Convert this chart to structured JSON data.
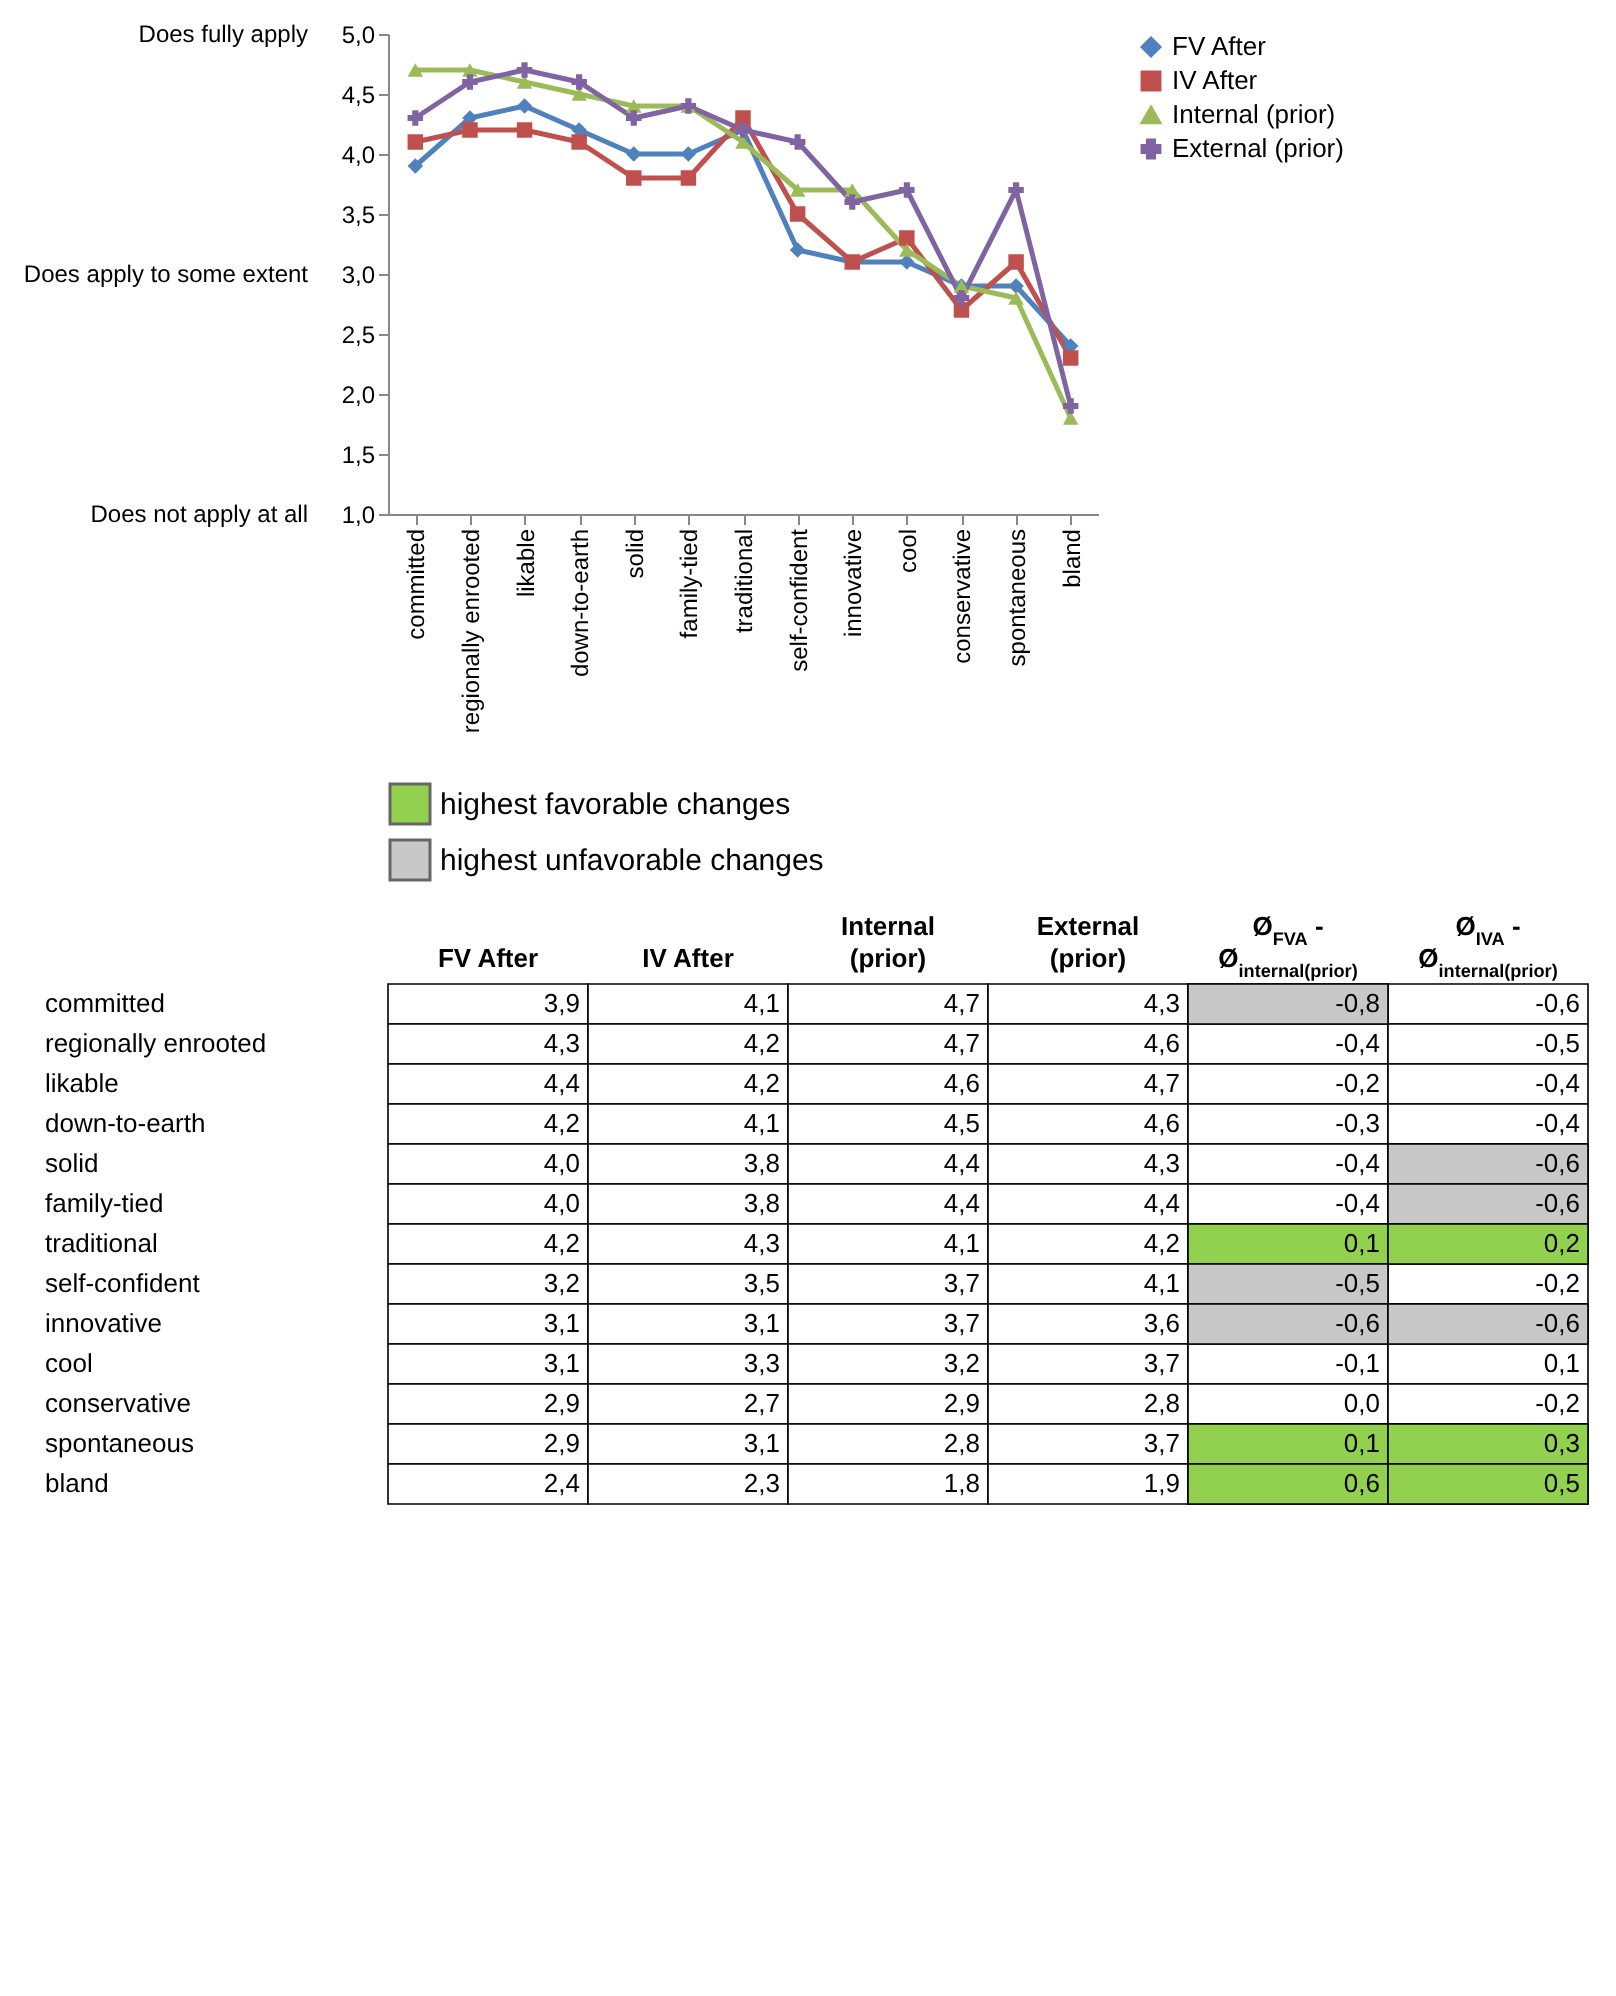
{
  "chart_data": [
    {
      "type": "line",
      "categories": [
        "committed",
        "regionally enrooted",
        "likable",
        "down-to-earth",
        "solid",
        "family-tied",
        "traditional",
        "self-confident",
        "innovative",
        "cool",
        "conservative",
        "spontaneous",
        "bland"
      ],
      "series": [
        {
          "name": "FV After",
          "color": "#4f81bd",
          "marker": "diamond",
          "values": [
            3.9,
            4.3,
            4.4,
            4.2,
            4.0,
            4.0,
            4.2,
            3.2,
            3.1,
            3.1,
            2.9,
            2.9,
            2.4
          ]
        },
        {
          "name": "IV After",
          "color": "#c0504d",
          "marker": "square",
          "values": [
            4.1,
            4.2,
            4.2,
            4.1,
            3.8,
            3.8,
            4.3,
            3.5,
            3.1,
            3.3,
            2.7,
            3.1,
            2.3
          ]
        },
        {
          "name": "Internal (prior)",
          "color": "#9bbb59",
          "marker": "triangle",
          "values": [
            4.7,
            4.7,
            4.6,
            4.5,
            4.4,
            4.4,
            4.1,
            3.7,
            3.7,
            3.2,
            2.9,
            2.8,
            1.8
          ]
        },
        {
          "name": "External (prior)",
          "color": "#8064a2",
          "marker": "cross",
          "values": [
            4.3,
            4.6,
            4.7,
            4.6,
            4.3,
            4.4,
            4.2,
            4.1,
            3.6,
            3.7,
            2.8,
            3.7,
            1.9
          ]
        }
      ],
      "ylim": [
        1,
        5
      ],
      "yticks": [
        {
          "value": 1,
          "label": "1,0"
        },
        {
          "value": 1.5,
          "label": "1,5"
        },
        {
          "value": 2,
          "label": "2,0"
        },
        {
          "value": 2.5,
          "label": "2,5"
        },
        {
          "value": 3,
          "label": "3,0"
        },
        {
          "value": 3.5,
          "label": "3,5"
        },
        {
          "value": 4,
          "label": "4,0"
        },
        {
          "value": 4.5,
          "label": "4,5"
        },
        {
          "value": 5,
          "label": "5,0"
        }
      ],
      "annotations": [
        "Does fully apply",
        "Does apply to some extent",
        "Does not apply at all"
      ],
      "legend": "right",
      "grid": false
    },
    {
      "type": "other",
      "categories": [
        "FV After",
        "IV After",
        "Internal (prior)",
        "External (prior)",
        "Ø$_{FVA}$ - Ø$_{internal(prior)}$",
        "Ø$_{IVA}$ - Ø$_{internal(prior)}$"
      ],
      "y_categories": [
        "committed",
        "regionally enrooted",
        "likable",
        "down-to-earth",
        "solid",
        "family-tied",
        "traditional",
        "self-confident",
        "innovative",
        "cool",
        "conservative",
        "spontaneous",
        "bland"
      ],
      "cell_labels": [
        [
          "3,9",
          "4,1",
          "4,7",
          "4,3",
          "-0,8",
          "-0,6"
        ],
        [
          "4,3",
          "4,2",
          "4,7",
          "4,6",
          "-0,4",
          "-0,5"
        ],
        [
          "4,4",
          "4,2",
          "4,6",
          "4,7",
          "-0,2",
          "-0,4"
        ],
        [
          "4,2",
          "4,1",
          "4,5",
          "4,6",
          "-0,3",
          "-0,4"
        ],
        [
          "4,0",
          "3,8",
          "4,4",
          "4,3",
          "-0,4",
          "-0,6"
        ],
        [
          "4,0",
          "3,8",
          "4,4",
          "4,4",
          "-0,4",
          "-0,6"
        ],
        [
          "4,2",
          "4,3",
          "4,1",
          "4,2",
          "0,1",
          "0,2"
        ],
        [
          "3,2",
          "3,5",
          "3,7",
          "4,1",
          "-0,5",
          "-0,2"
        ],
        [
          "3,1",
          "3,1",
          "3,7",
          "3,6",
          "-0,6",
          "-0,6"
        ],
        [
          "3,1",
          "3,3",
          "3,2",
          "3,7",
          "-0,1",
          "0,1"
        ],
        [
          "2,9",
          "2,7",
          "2,9",
          "2,8",
          "0,0",
          "-0,2"
        ],
        [
          "2,9",
          "3,1",
          "2,8",
          "3,7",
          "0,1",
          "0,3"
        ],
        [
          "2,4",
          "2,3",
          "1,8",
          "1,9",
          "0,6",
          "0,5"
        ]
      ],
      "colors": [
        [
          null,
          null,
          null,
          null,
          "#c8c8c8",
          null
        ],
        [
          null,
          null,
          null,
          null,
          null,
          null
        ],
        [
          null,
          null,
          null,
          null,
          null,
          null
        ],
        [
          null,
          null,
          null,
          null,
          null,
          null
        ],
        [
          null,
          null,
          null,
          null,
          null,
          "#c8c8c8"
        ],
        [
          null,
          null,
          null,
          null,
          null,
          "#c8c8c8"
        ],
        [
          null,
          null,
          null,
          null,
          "#92d050",
          "#92d050"
        ],
        [
          null,
          null,
          null,
          null,
          "#c8c8c8",
          null
        ],
        [
          null,
          null,
          null,
          null,
          "#c8c8c8",
          "#c8c8c8"
        ],
        [
          null,
          null,
          null,
          null,
          null,
          null
        ],
        [
          null,
          null,
          null,
          null,
          null,
          null
        ],
        [
          null,
          null,
          null,
          null,
          "#92d050",
          "#92d050"
        ],
        [
          null,
          null,
          null,
          null,
          "#92d050",
          "#92d050"
        ]
      ],
      "annotations": [
        "highest favorable changes",
        "highest unfavorable changes"
      ]
    }
  ]
}
